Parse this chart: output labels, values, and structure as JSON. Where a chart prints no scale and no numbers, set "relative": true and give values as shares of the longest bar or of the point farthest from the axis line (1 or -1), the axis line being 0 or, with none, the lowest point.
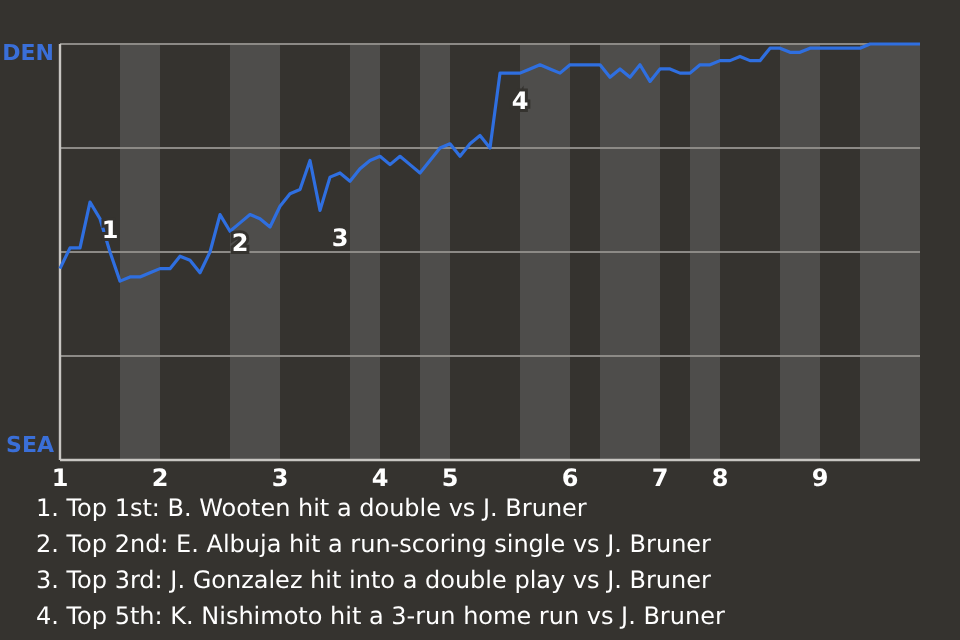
{
  "chart_data": {
    "type": "line",
    "relative": true,
    "categories": [
      "1",
      null,
      null,
      null,
      null,
      null,
      null,
      null,
      null,
      null,
      "2",
      null,
      null,
      null,
      null,
      null,
      null,
      null,
      null,
      null,
      null,
      null,
      "3",
      null,
      null,
      null,
      null,
      null,
      null,
      null,
      null,
      null,
      "4",
      null,
      null,
      null,
      null,
      null,
      null,
      "5",
      null,
      null,
      null,
      null,
      null,
      null,
      null,
      null,
      null,
      null,
      null,
      "6",
      null,
      null,
      null,
      null,
      null,
      null,
      null,
      null,
      "7",
      null,
      null,
      null,
      null,
      null,
      "8",
      null,
      null,
      null,
      null,
      null,
      null,
      null,
      null,
      null,
      "9",
      null,
      null,
      null,
      null,
      null,
      null,
      null,
      null,
      null,
      null
    ],
    "series": [
      {
        "color": "#2f6fe0",
        "values": [
          0.46,
          0.51,
          0.51,
          0.62,
          0.58,
          0.5,
          0.43,
          0.44,
          0.44,
          0.45,
          0.46,
          0.46,
          0.49,
          0.48,
          0.45,
          0.5,
          0.59,
          0.55,
          0.57,
          0.59,
          0.58,
          0.56,
          0.61,
          0.64,
          0.65,
          0.72,
          0.6,
          0.68,
          0.69,
          0.67,
          0.7,
          0.72,
          0.73,
          0.71,
          0.73,
          0.71,
          0.69,
          0.72,
          0.75,
          0.76,
          0.73,
          0.76,
          0.78,
          0.75,
          0.93,
          0.93,
          0.93,
          0.94,
          0.95,
          0.94,
          0.93,
          0.95,
          0.95,
          0.95,
          0.95,
          0.92,
          0.94,
          0.92,
          0.95,
          0.91,
          0.94,
          0.94,
          0.93,
          0.93,
          0.95,
          0.95,
          0.96,
          0.96,
          0.97,
          0.96,
          0.96,
          0.99,
          0.99,
          0.98,
          0.98,
          0.99,
          0.99,
          0.99,
          0.99,
          0.99,
          0.99,
          1,
          1,
          1,
          1,
          1,
          1
        ]
      }
    ],
    "grid": "y",
    "marker": "none",
    "line_style": "solid",
    "annotations": [
      "DEN",
      "SEA",
      "1. Top 1st: B. Wooten hit a double vs J. Bruner",
      "2. Top 2nd: E. Albuja hit a run-scoring single vs J. Bruner",
      "3. Top 3rd: J. Gonzalez hit into a double play vs J. Bruner",
      "4. Top 5th: K. Nishimoto hit a 3-run home run vs J. Bruner",
      "1",
      "2",
      "3",
      "4"
    ]
  }
}
